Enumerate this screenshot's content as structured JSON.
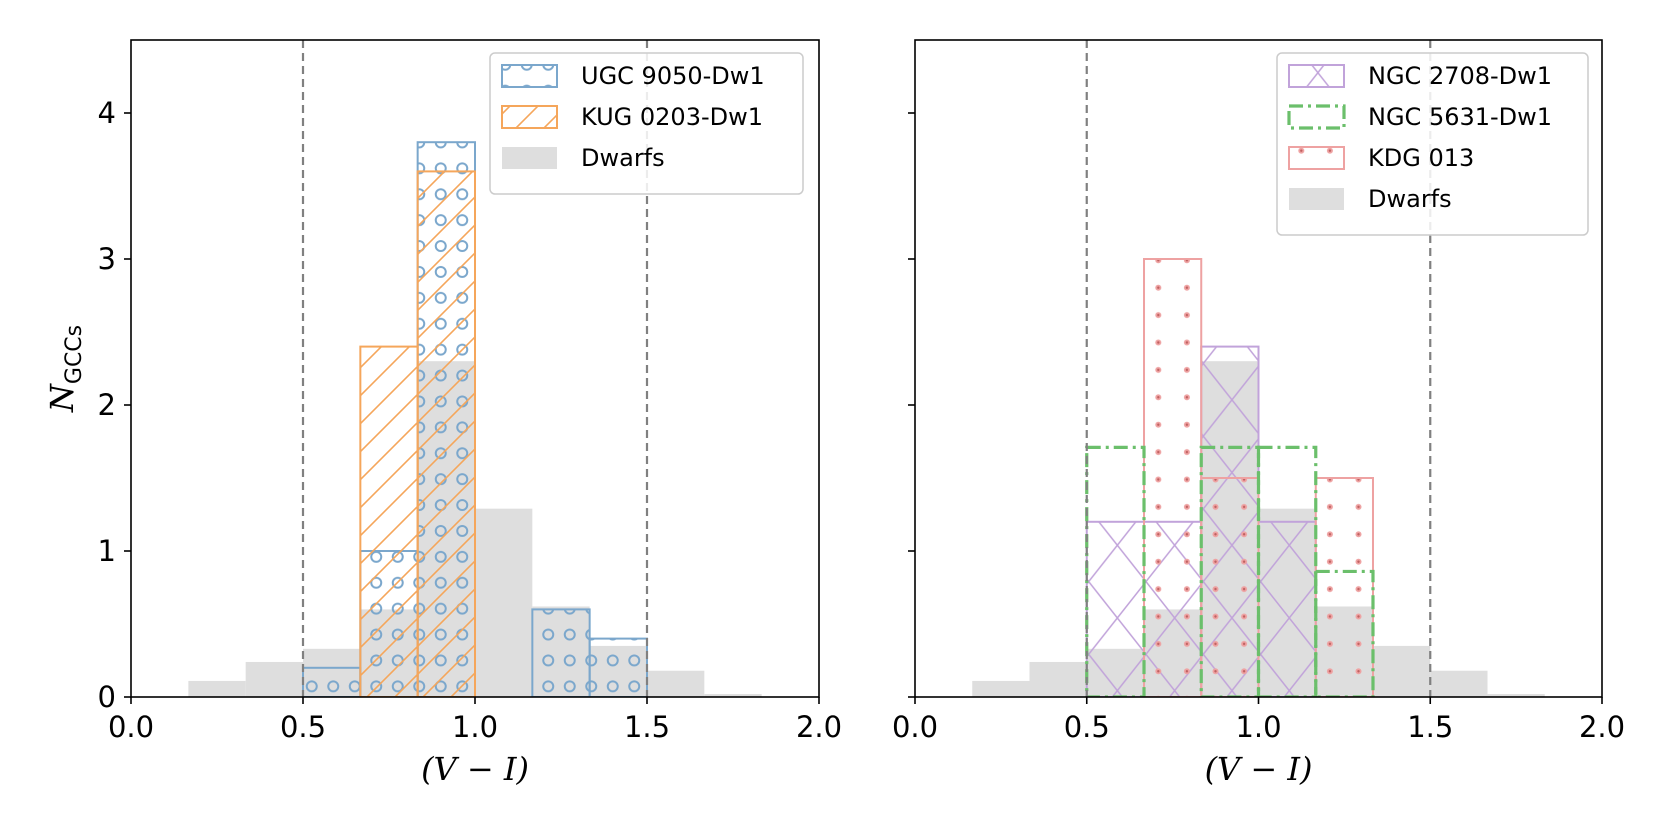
{
  "colors": {
    "blue": "#7ba7cc",
    "orange": "#f5a65b",
    "purple": "#c1a3da",
    "green": "#6bbf6b",
    "red": "#eea2a2",
    "dwarf_fill": "#dedede",
    "vline": "#808080"
  },
  "chart_data": [
    {
      "type": "bar",
      "panel": "left",
      "xlabel": "(V − I)",
      "ylabel": "N",
      "ylabel_sub": "GCCs",
      "xlim": [
        0.0,
        2.0
      ],
      "ylim": [
        0,
        4.5
      ],
      "xticks": [
        0.0,
        0.5,
        1.0,
        1.5,
        2.0
      ],
      "xtick_labels": [
        "0.0",
        "0.5",
        "1.0",
        "1.5",
        "2.0"
      ],
      "yticks": [
        0,
        1,
        2,
        3,
        4
      ],
      "ytick_labels": [
        "0",
        "1",
        "2",
        "3",
        "4"
      ],
      "vlines": [
        0.5,
        1.5
      ],
      "legend_position": "top-right",
      "series": [
        {
          "name": "Dwarfs",
          "style": "dwarfs",
          "color_key": "dwarf_fill",
          "bins": [
            [
              0.1667,
              0.3333,
              0.11
            ],
            [
              0.3333,
              0.5,
              0.24
            ],
            [
              0.5,
              0.6667,
              0.33
            ],
            [
              0.6667,
              0.8333,
              0.6
            ],
            [
              0.8333,
              1.0,
              2.3
            ],
            [
              1.0,
              1.1667,
              1.29
            ],
            [
              1.1667,
              1.3333,
              0.62
            ],
            [
              1.3333,
              1.5,
              0.35
            ],
            [
              1.5,
              1.6667,
              0.18
            ],
            [
              1.6667,
              1.8333,
              0.02
            ]
          ]
        },
        {
          "name": "UGC 9050-Dw1",
          "style": "circles",
          "color_key": "blue",
          "bins": [
            [
              0.5,
              0.6667,
              0.2
            ],
            [
              0.6667,
              0.8333,
              1.0
            ],
            [
              0.8333,
              1.0,
              3.8
            ],
            [
              1.1667,
              1.3333,
              0.6
            ],
            [
              1.3333,
              1.5,
              0.4
            ]
          ]
        },
        {
          "name": "KUG 0203-Dw1",
          "style": "diag",
          "color_key": "orange",
          "bins": [
            [
              0.6667,
              0.8333,
              2.4
            ],
            [
              0.8333,
              1.0,
              3.6
            ]
          ]
        }
      ],
      "legend": [
        "UGC 9050-Dw1",
        "KUG 0203-Dw1",
        "Dwarfs"
      ]
    },
    {
      "type": "bar",
      "panel": "right",
      "xlabel": "(V − I)",
      "xlim": [
        0.0,
        2.0
      ],
      "ylim": [
        0,
        4.5
      ],
      "xticks": [
        0.0,
        0.5,
        1.0,
        1.5,
        2.0
      ],
      "xtick_labels": [
        "0.0",
        "0.5",
        "1.0",
        "1.5",
        "2.0"
      ],
      "yticks": [
        0,
        1,
        2,
        3,
        4
      ],
      "vlines": [
        0.5,
        1.5
      ],
      "legend_position": "top-right",
      "series": [
        {
          "name": "Dwarfs",
          "style": "dwarfs",
          "color_key": "dwarf_fill",
          "bins": [
            [
              0.1667,
              0.3333,
              0.11
            ],
            [
              0.3333,
              0.5,
              0.24
            ],
            [
              0.5,
              0.6667,
              0.33
            ],
            [
              0.6667,
              0.8333,
              0.6
            ],
            [
              0.8333,
              1.0,
              2.3
            ],
            [
              1.0,
              1.1667,
              1.29
            ],
            [
              1.1667,
              1.3333,
              0.62
            ],
            [
              1.3333,
              1.5,
              0.35
            ],
            [
              1.5,
              1.6667,
              0.18
            ],
            [
              1.6667,
              1.8333,
              0.02
            ]
          ]
        },
        {
          "name": "NGC 2708-Dw1",
          "style": "cross",
          "color_key": "purple",
          "bins": [
            [
              0.5,
              0.6667,
              1.2
            ],
            [
              0.6667,
              0.8333,
              1.2
            ],
            [
              0.8333,
              1.0,
              2.4
            ],
            [
              1.0,
              1.1667,
              1.2
            ]
          ]
        },
        {
          "name": "KDG 013",
          "style": "dots",
          "color_key": "red",
          "bins": [
            [
              0.6667,
              0.8333,
              3.0
            ],
            [
              0.8333,
              1.0,
              1.5
            ],
            [
              1.1667,
              1.3333,
              1.5
            ]
          ]
        },
        {
          "name": "NGC 5631-Dw1",
          "style": "dashdot",
          "color_key": "green",
          "bins": [
            [
              0.5,
              0.6667,
              1.71
            ],
            [
              0.6667,
              0.8333,
              0.0
            ],
            [
              0.8333,
              1.0,
              1.71
            ],
            [
              1.0,
              1.1667,
              1.71
            ],
            [
              1.1667,
              1.3333,
              0.86
            ]
          ]
        }
      ],
      "legend": [
        "NGC 2708-Dw1",
        "NGC 5631-Dw1",
        "KDG 013",
        "Dwarfs"
      ]
    }
  ]
}
